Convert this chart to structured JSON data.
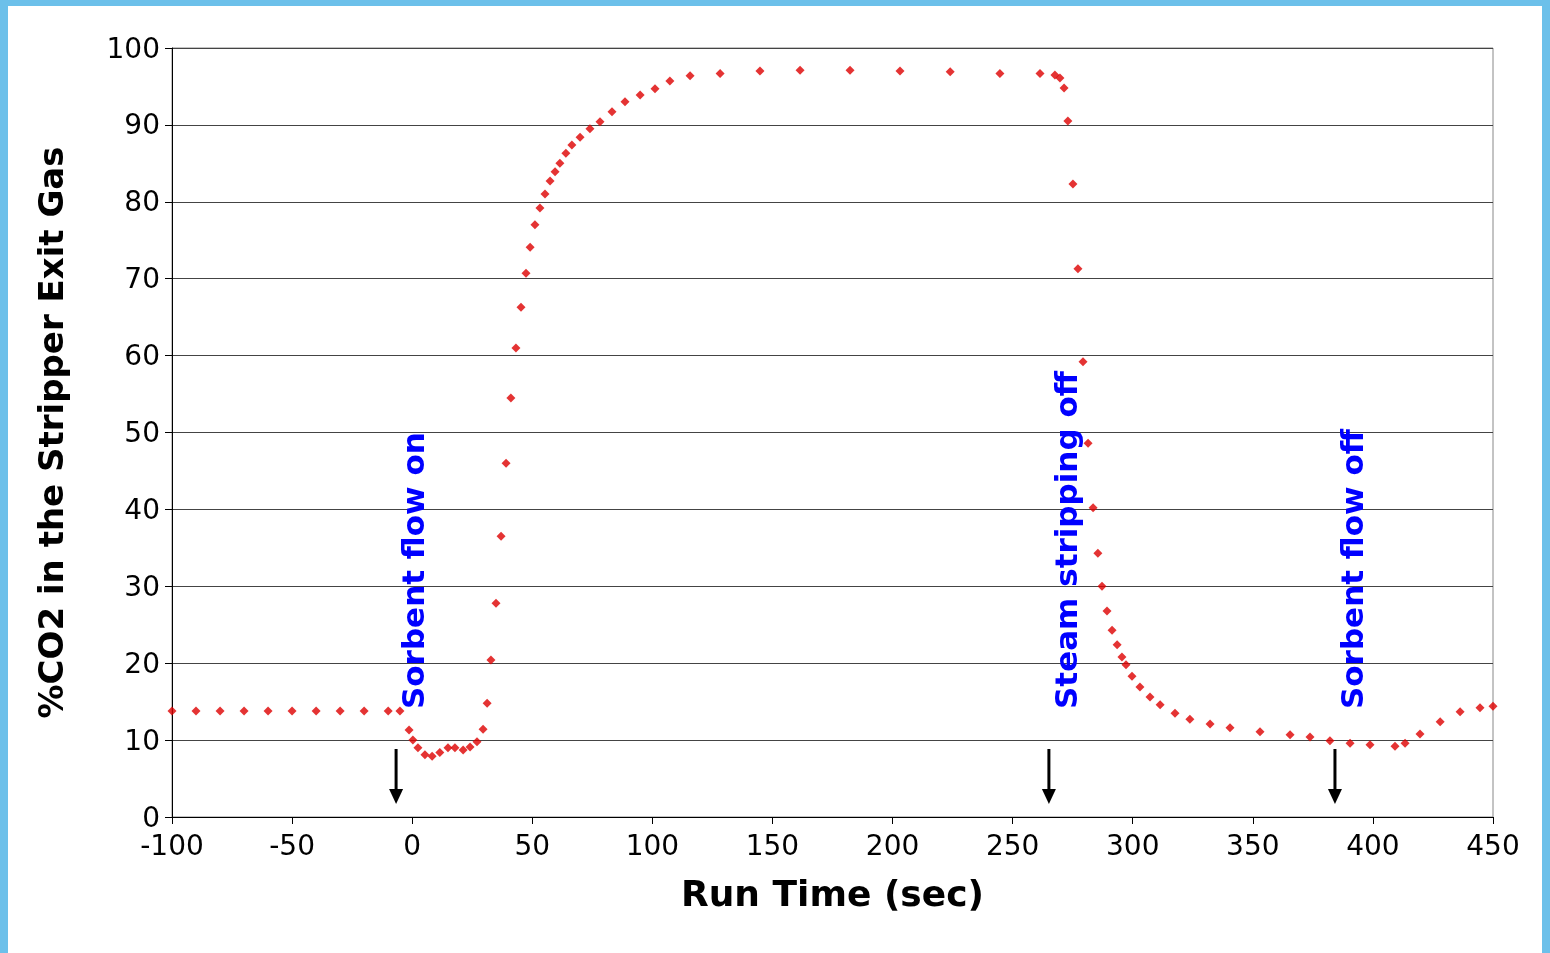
{
  "chart_data": {
    "type": "scatter",
    "xlabel": "Run Time (sec)",
    "ylabel": "%CO2 in the Stripper Exit Gas",
    "xlim": [
      -100,
      450
    ],
    "xticks": [
      -100,
      -50,
      0,
      50,
      100,
      150,
      200,
      250,
      300,
      350,
      400,
      450
    ],
    "ylim": [
      0,
      100
    ],
    "yticks": [
      0,
      10,
      20,
      30,
      40,
      50,
      60,
      70,
      80,
      90,
      100
    ],
    "grid": "y",
    "marker": "diamond",
    "ref_lines": [
      {
        "axis": "x",
        "value": -6.7,
        "label": "Sorbent flow on"
      },
      {
        "axis": "x",
        "value": 265.1,
        "label": "Steam stripping off"
      },
      {
        "axis": "x",
        "value": 384.2,
        "label": "Sorbent flow off"
      }
    ],
    "series": [
      {
        "color": "#dd0000",
        "x": [
          -100,
          -90,
          -80,
          -70,
          -60,
          -50,
          -40,
          -30,
          -20,
          -10,
          -5.1,
          -1.3,
          0.3,
          2.4,
          5.3,
          8.3,
          11.5,
          14.9,
          17.8,
          21.2,
          24.1,
          27,
          29.5,
          31.2,
          32.8,
          34.9,
          37,
          39.1,
          41.1,
          43.2,
          45.3,
          47.4,
          49.1,
          51.1,
          53.2,
          55.3,
          57.4,
          59.5,
          61.5,
          64,
          66.5,
          69.9,
          74,
          78.2,
          83.2,
          88.6,
          94.9,
          101.1,
          107.3,
          115.7,
          128.2,
          144.8,
          161.5,
          182.3,
          203.1,
          224,
          244.7,
          261.4,
          267.6,
          269.7,
          271.4,
          273,
          275.1,
          277.2,
          279.3,
          281.4,
          283.5,
          285.5,
          287.2,
          289.3,
          291.4,
          293.5,
          295.5,
          297.2,
          299.7,
          303,
          307.2,
          311.4,
          317.6,
          323.8,
          332.2,
          340.5,
          353,
          365.5,
          373.8,
          382.1,
          390.5,
          398.8,
          409.2,
          413.4,
          419.6,
          428,
          436.3,
          444.6,
          450
        ],
        "values": [
          13.8,
          13.8,
          13.8,
          13.8,
          13.8,
          13.8,
          13.8,
          13.8,
          13.8,
          13.8,
          13.8,
          11.3,
          10.0,
          9.0,
          8.1,
          7.9,
          8.4,
          9.0,
          9.0,
          8.7,
          9.1,
          9.8,
          11.4,
          14.8,
          20.4,
          27.8,
          36.5,
          46.0,
          54.5,
          61.0,
          66.3,
          70.7,
          74.1,
          77.0,
          79.2,
          81.0,
          82.7,
          83.9,
          85.0,
          86.3,
          87.4,
          88.4,
          89.5,
          90.4,
          91.7,
          93.0,
          93.9,
          94.7,
          95.7,
          96.4,
          96.7,
          97.0,
          97.1,
          97.1,
          97.0,
          96.9,
          96.7,
          96.7,
          96.5,
          96.1,
          94.8,
          90.5,
          82.3,
          71.3,
          59.2,
          48.6,
          40.2,
          34.3,
          30.0,
          26.8,
          24.3,
          22.4,
          20.8,
          19.8,
          18.3,
          16.9,
          15.6,
          14.6,
          13.5,
          12.7,
          12.1,
          11.6,
          11.1,
          10.7,
          10.4,
          9.9,
          9.6,
          9.4,
          9.2,
          9.6,
          10.8,
          12.4,
          13.7,
          14.2,
          14.4
        ]
      }
    ]
  }
}
